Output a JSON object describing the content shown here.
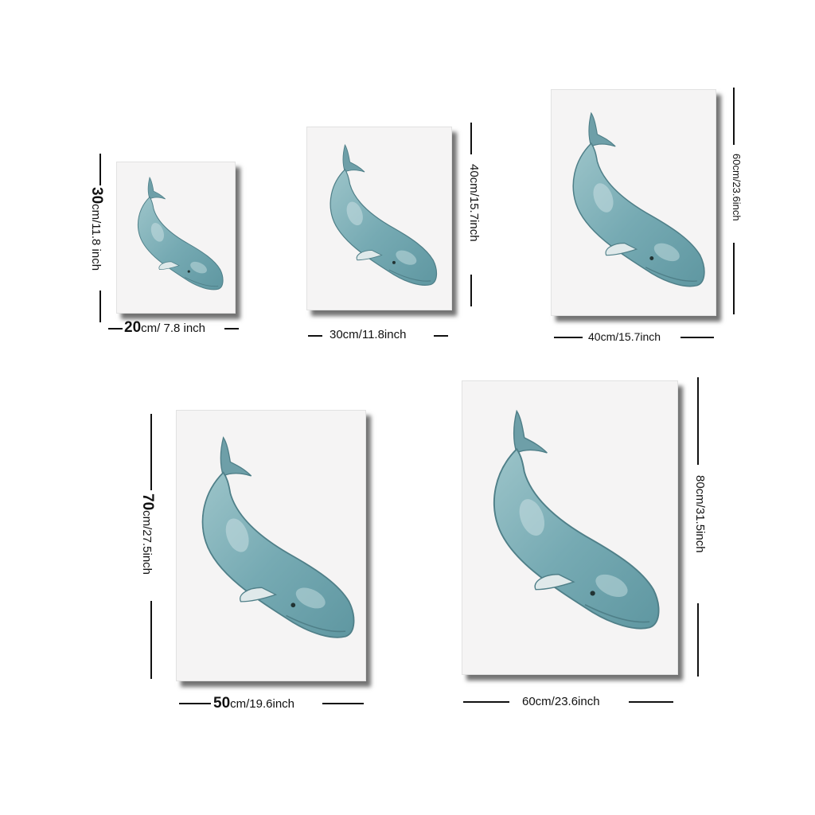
{
  "sizes": [
    {
      "height_big": "30",
      "height_rest": "cm/11.8 inch",
      "width_big": "20",
      "width_rest": "cm/ 7.8 inch"
    },
    {
      "height_text": "40cm/15.7inch",
      "width_text": "30cm/11.8inch"
    },
    {
      "height_text": "60cm/23.6inch",
      "width_text": "40cm/15.7inch"
    },
    {
      "height_big": "70",
      "height_rest": "cm/27.5inch",
      "width_big": "50",
      "width_rest": "cm/19.6inch"
    },
    {
      "height_text": "80cm/31.5inch",
      "width_text": "60cm/23.6inch"
    }
  ],
  "artwork": {
    "subject": "sperm whale watercolor",
    "whale_color": "#7fb0b8",
    "paper_color": "#f5f4f4"
  }
}
